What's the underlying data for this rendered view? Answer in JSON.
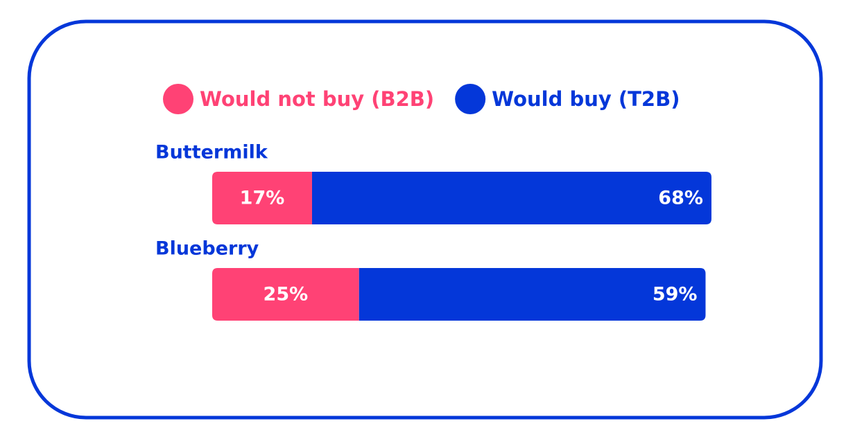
{
  "chart_data": {
    "type": "stacked-bar-horizontal",
    "categories": [
      "Buttermilk",
      "Blueberry"
    ],
    "series": [
      {
        "name": "Would not buy (B2B)",
        "color": "#ff4275",
        "values": [
          17,
          25
        ],
        "value_labels": [
          "17%",
          "25%"
        ]
      },
      {
        "name": "Would buy (T2B)",
        "color": "#0437d9",
        "values": [
          68,
          59
        ],
        "value_labels": [
          "68%",
          "59%"
        ]
      }
    ],
    "category_color": "#0437d9",
    "border_color": "#0437d9",
    "value_label_color": "#ffffff"
  }
}
